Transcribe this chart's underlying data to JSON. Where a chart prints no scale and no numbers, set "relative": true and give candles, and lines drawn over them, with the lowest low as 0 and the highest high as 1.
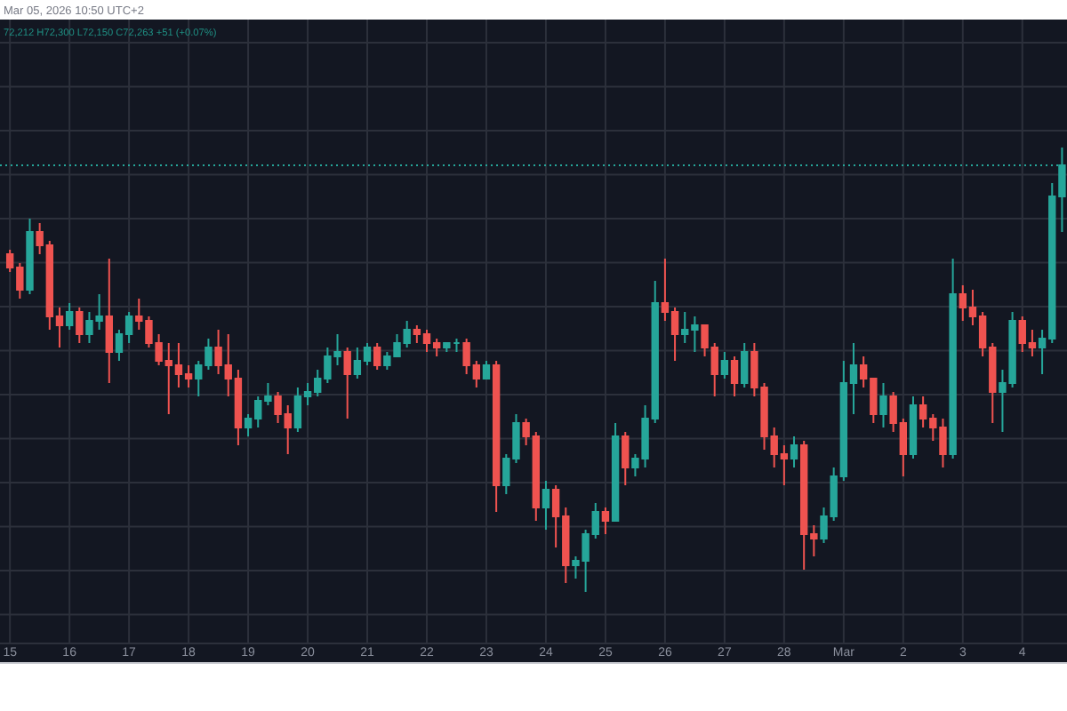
{
  "chart_data": {
    "type": "candlestick",
    "relative": true,
    "annotations": [
      "Mar 05, 2026 10:50 UTC+2",
      "72,212 H72,300 L72,150 C72,263 +51 (+0.07%)"
    ],
    "xlim": [
      "2026-02-14T20:00",
      "2026-03-04T18:00"
    ],
    "xticks": [
      {
        "value": "2026-02-15",
        "label": "15"
      },
      {
        "value": "2026-02-16",
        "label": "16"
      },
      {
        "value": "2026-02-17",
        "label": "17"
      },
      {
        "value": "2026-02-18",
        "label": "18"
      },
      {
        "value": "2026-02-19",
        "label": "19"
      },
      {
        "value": "2026-02-20",
        "label": "20"
      },
      {
        "value": "2026-02-21",
        "label": "21"
      },
      {
        "value": "2026-02-22",
        "label": "22"
      },
      {
        "value": "2026-02-23",
        "label": "23"
      },
      {
        "value": "2026-02-24",
        "label": "24"
      },
      {
        "value": "2026-02-25",
        "label": "25"
      },
      {
        "value": "2026-02-26",
        "label": "26"
      },
      {
        "value": "2026-02-27",
        "label": "27"
      },
      {
        "value": "2026-02-28",
        "label": "28"
      },
      {
        "value": "2026-03-01",
        "label": "Mar"
      },
      {
        "value": "2026-03-02",
        "label": "2"
      },
      {
        "value": "2026-03-03",
        "label": "3"
      },
      {
        "value": "2026-03-04",
        "label": "4"
      }
    ],
    "grid": true,
    "ref_lines": [
      {
        "axis": "y",
        "value": 0.96,
        "color": "#26a69a",
        "line_style": "dotted"
      }
    ],
    "x": [
      "2026-02-15T00:00",
      "2026-02-15T04:00",
      "2026-02-15T08:00",
      "2026-02-15T12:00",
      "2026-02-15T16:00",
      "2026-02-15T20:00",
      "2026-02-16T00:00",
      "2026-02-16T04:00",
      "2026-02-16T08:00",
      "2026-02-16T12:00",
      "2026-02-16T16:00",
      "2026-02-16T20:00",
      "2026-02-17T00:00",
      "2026-02-17T04:00",
      "2026-02-17T08:00",
      "2026-02-17T12:00",
      "2026-02-17T16:00",
      "2026-02-17T20:00",
      "2026-02-18T00:00",
      "2026-02-18T04:00",
      "2026-02-18T08:00",
      "2026-02-18T12:00",
      "2026-02-18T16:00",
      "2026-02-18T20:00",
      "2026-02-19T00:00",
      "2026-02-19T04:00",
      "2026-02-19T08:00",
      "2026-02-19T12:00",
      "2026-02-19T16:00",
      "2026-02-19T20:00",
      "2026-02-20T00:00",
      "2026-02-20T04:00",
      "2026-02-20T08:00",
      "2026-02-20T12:00",
      "2026-02-20T16:00",
      "2026-02-20T20:00",
      "2026-02-21T00:00",
      "2026-02-21T04:00",
      "2026-02-21T08:00",
      "2026-02-21T12:00",
      "2026-02-21T16:00",
      "2026-02-21T20:00",
      "2026-02-22T00:00",
      "2026-02-22T04:00",
      "2026-02-22T08:00",
      "2026-02-22T12:00",
      "2026-02-22T16:00",
      "2026-02-22T20:00",
      "2026-02-23T00:00",
      "2026-02-23T04:00",
      "2026-02-23T08:00",
      "2026-02-23T12:00",
      "2026-02-23T16:00",
      "2026-02-23T20:00",
      "2026-02-24T00:00",
      "2026-02-24T04:00",
      "2026-02-24T08:00",
      "2026-02-24T12:00",
      "2026-02-24T16:00",
      "2026-02-24T20:00",
      "2026-02-25T00:00",
      "2026-02-25T04:00",
      "2026-02-25T08:00",
      "2026-02-25T12:00",
      "2026-02-25T16:00",
      "2026-02-25T20:00",
      "2026-02-26T00:00",
      "2026-02-26T04:00",
      "2026-02-26T08:00",
      "2026-02-26T12:00",
      "2026-02-26T16:00",
      "2026-02-26T20:00",
      "2026-02-27T00:00",
      "2026-02-27T04:00",
      "2026-02-27T08:00",
      "2026-02-27T12:00",
      "2026-02-27T16:00",
      "2026-02-27T20:00",
      "2026-02-28T00:00",
      "2026-02-28T04:00",
      "2026-02-28T08:00",
      "2026-02-28T12:00",
      "2026-02-28T16:00",
      "2026-02-28T20:00",
      "2026-03-01T00:00",
      "2026-03-01T04:00",
      "2026-03-01T08:00",
      "2026-03-01T12:00",
      "2026-03-01T16:00",
      "2026-03-01T20:00",
      "2026-03-02T00:00",
      "2026-03-02T04:00",
      "2026-03-02T08:00",
      "2026-03-02T12:00",
      "2026-03-02T16:00",
      "2026-03-02T20:00",
      "2026-03-03T00:00",
      "2026-03-03T04:00",
      "2026-03-03T08:00",
      "2026-03-03T12:00",
      "2026-03-03T16:00",
      "2026-03-03T20:00",
      "2026-03-04T00:00",
      "2026-03-04T04:00",
      "2026-03-04T08:00",
      "2026-03-04T12:00",
      "2026-03-04T16:00"
    ],
    "ohlc": [
      [
        0.76,
        0.77,
        0.72,
        0.73
      ],
      [
        0.73,
        0.74,
        0.66,
        0.68
      ],
      [
        0.68,
        0.84,
        0.67,
        0.81
      ],
      [
        0.81,
        0.83,
        0.76,
        0.78
      ],
      [
        0.78,
        0.79,
        0.59,
        0.62
      ],
      [
        0.62,
        0.64,
        0.55,
        0.6
      ],
      [
        0.6,
        0.65,
        0.59,
        0.63
      ],
      [
        0.63,
        0.64,
        0.56,
        0.58
      ],
      [
        0.58,
        0.63,
        0.56,
        0.61
      ],
      [
        0.61,
        0.67,
        0.59,
        0.62
      ],
      [
        0.62,
        0.75,
        0.47,
        0.54
      ],
      [
        0.54,
        0.59,
        0.52,
        0.58
      ],
      [
        0.58,
        0.63,
        0.56,
        0.62
      ],
      [
        0.62,
        0.66,
        0.59,
        0.61
      ],
      [
        0.61,
        0.62,
        0.55,
        0.56
      ],
      [
        0.56,
        0.58,
        0.51,
        0.52
      ],
      [
        0.52,
        0.56,
        0.4,
        0.51
      ],
      [
        0.51,
        0.56,
        0.46,
        0.49
      ],
      [
        0.49,
        0.51,
        0.46,
        0.48
      ],
      [
        0.48,
        0.52,
        0.44,
        0.51
      ],
      [
        0.51,
        0.57,
        0.5,
        0.55
      ],
      [
        0.55,
        0.59,
        0.49,
        0.51
      ],
      [
        0.51,
        0.58,
        0.44,
        0.48
      ],
      [
        0.48,
        0.5,
        0.33,
        0.37
      ],
      [
        0.37,
        0.4,
        0.35,
        0.39
      ],
      [
        0.39,
        0.44,
        0.37,
        0.43
      ],
      [
        0.43,
        0.47,
        0.42,
        0.44
      ],
      [
        0.44,
        0.45,
        0.38,
        0.4
      ],
      [
        0.4,
        0.42,
        0.31,
        0.37
      ],
      [
        0.37,
        0.46,
        0.36,
        0.44
      ],
      [
        0.44,
        0.47,
        0.42,
        0.45
      ],
      [
        0.45,
        0.5,
        0.44,
        0.48
      ],
      [
        0.48,
        0.55,
        0.47,
        0.53
      ],
      [
        0.53,
        0.58,
        0.51,
        0.54
      ],
      [
        0.54,
        0.55,
        0.39,
        0.49
      ],
      [
        0.49,
        0.55,
        0.48,
        0.52
      ],
      [
        0.52,
        0.56,
        0.51,
        0.55
      ],
      [
        0.55,
        0.56,
        0.5,
        0.51
      ],
      [
        0.51,
        0.54,
        0.5,
        0.53
      ],
      [
        0.53,
        0.58,
        0.53,
        0.56
      ],
      [
        0.56,
        0.61,
        0.55,
        0.59
      ],
      [
        0.59,
        0.6,
        0.56,
        0.58
      ],
      [
        0.58,
        0.59,
        0.54,
        0.56
      ],
      [
        0.56,
        0.57,
        0.53,
        0.55
      ],
      [
        0.55,
        0.56,
        0.54,
        0.56
      ],
      [
        0.56,
        0.57,
        0.54,
        0.56
      ],
      [
        0.56,
        0.57,
        0.49,
        0.51
      ],
      [
        0.51,
        0.52,
        0.46,
        0.48
      ],
      [
        0.48,
        0.52,
        0.48,
        0.51
      ],
      [
        0.51,
        0.52,
        0.18,
        0.24
      ],
      [
        0.24,
        0.31,
        0.22,
        0.3
      ],
      [
        0.3,
        0.4,
        0.29,
        0.38
      ],
      [
        0.38,
        0.39,
        0.33,
        0.35
      ],
      [
        0.35,
        0.36,
        0.16,
        0.19
      ],
      [
        0.19,
        0.25,
        0.14,
        0.23
      ],
      [
        0.23,
        0.24,
        0.1,
        0.17
      ],
      [
        0.17,
        0.19,
        0.02,
        0.06
      ],
      [
        0.06,
        0.08,
        0.03,
        0.07
      ],
      [
        0.07,
        0.14,
        0,
        0.13
      ],
      [
        0.13,
        0.2,
        0.12,
        0.18
      ],
      [
        0.18,
        0.19,
        0.13,
        0.16
      ],
      [
        0.16,
        0.38,
        0.16,
        0.35
      ],
      [
        0.35,
        0.36,
        0.24,
        0.28
      ],
      [
        0.28,
        0.31,
        0.26,
        0.3
      ],
      [
        0.3,
        0.42,
        0.28,
        0.39
      ],
      [
        0.39,
        0.7,
        0.38,
        0.65
      ],
      [
        0.65,
        0.75,
        0.61,
        0.63
      ],
      [
        0.63,
        0.64,
        0.52,
        0.58
      ],
      [
        0.58,
        0.63,
        0.56,
        0.59
      ],
      [
        0.59,
        0.62,
        0.54,
        0.6
      ],
      [
        0.6,
        0.6,
        0.53,
        0.55
      ],
      [
        0.55,
        0.56,
        0.44,
        0.49
      ],
      [
        0.49,
        0.54,
        0.48,
        0.52
      ],
      [
        0.52,
        0.53,
        0.44,
        0.47
      ],
      [
        0.47,
        0.56,
        0.46,
        0.54
      ],
      [
        0.54,
        0.56,
        0.44,
        0.46
      ],
      [
        0.46,
        0.47,
        0.32,
        0.35
      ],
      [
        0.35,
        0.37,
        0.28,
        0.31
      ],
      [
        0.31,
        0.33,
        0.24,
        0.3
      ],
      [
        0.3,
        0.35,
        0.28,
        0.33
      ],
      [
        0.33,
        0.34,
        0.05,
        0.13
      ],
      [
        0.13,
        0.15,
        0.08,
        0.12
      ],
      [
        0.12,
        0.19,
        0.11,
        0.17
      ],
      [
        0.17,
        0.28,
        0.16,
        0.26
      ],
      [
        0.26,
        0.52,
        0.25,
        0.47
      ],
      [
        0.47,
        0.56,
        0.4,
        0.51
      ],
      [
        0.51,
        0.53,
        0.46,
        0.48
      ],
      [
        0.48,
        0.48,
        0.38,
        0.4
      ],
      [
        0.4,
        0.47,
        0.37,
        0.44
      ],
      [
        0.44,
        0.45,
        0.36,
        0.38
      ],
      [
        0.38,
        0.39,
        0.26,
        0.31
      ],
      [
        0.31,
        0.44,
        0.3,
        0.42
      ],
      [
        0.42,
        0.44,
        0.37,
        0.39
      ],
      [
        0.39,
        0.4,
        0.34,
        0.37
      ],
      [
        0.37,
        0.39,
        0.28,
        0.31
      ],
      [
        0.31,
        0.75,
        0.3,
        0.67
      ],
      [
        0.67,
        0.69,
        0.61,
        0.64
      ],
      [
        0.64,
        0.68,
        0.6,
        0.62
      ],
      [
        0.62,
        0.63,
        0.53,
        0.55
      ],
      [
        0.55,
        0.56,
        0.38,
        0.45
      ],
      [
        0.45,
        0.5,
        0.36,
        0.47
      ],
      [
        0.47,
        0.63,
        0.46,
        0.61
      ],
      [
        0.61,
        0.62,
        0.54,
        0.56
      ],
      [
        0.56,
        0.59,
        0.53,
        0.55
      ],
      [
        0.55,
        0.59,
        0.49,
        0.57
      ],
      [
        0.57,
        0.92,
        0.56,
        0.89
      ],
      [
        0.89,
        1,
        0.81,
        0.96
      ]
    ]
  }
}
